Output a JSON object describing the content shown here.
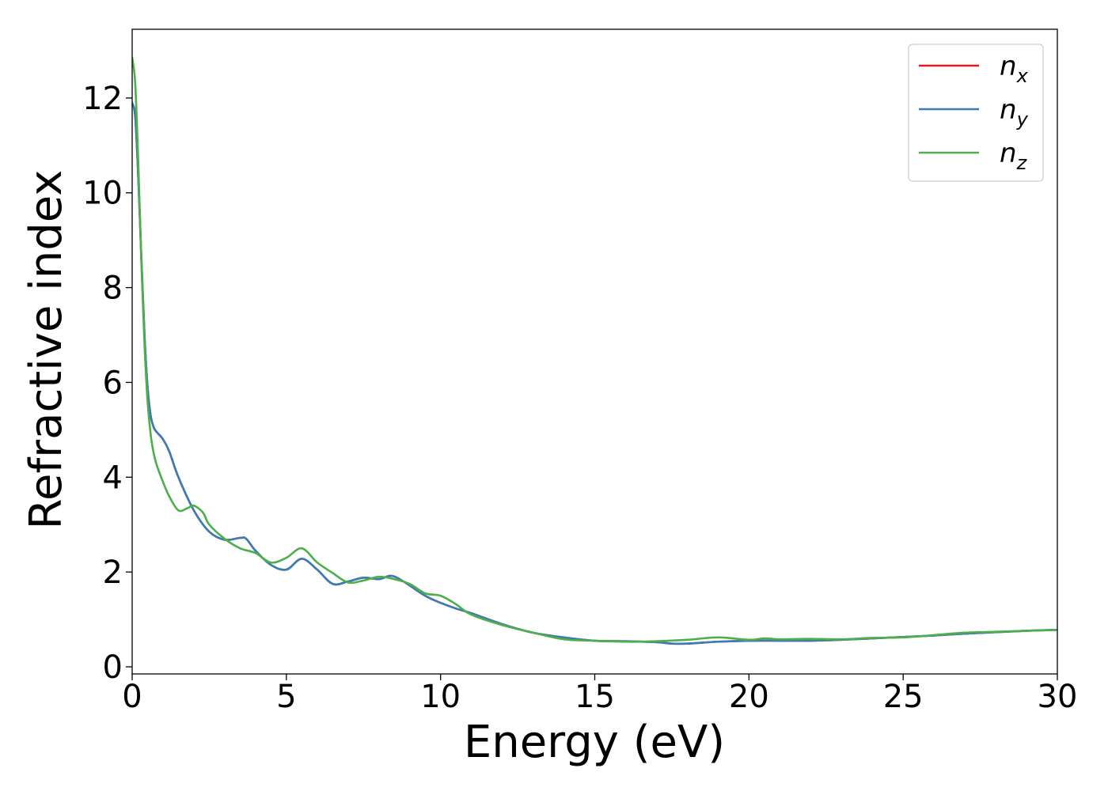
{
  "chart_data": {
    "type": "line",
    "title": "",
    "xlabel": "Energy (eV)",
    "ylabel": "Refractive index",
    "xlim": [
      0,
      30
    ],
    "ylim": [
      -0.15,
      13.45
    ],
    "xticks": [
      0,
      5,
      10,
      15,
      20,
      25,
      30
    ],
    "xtick_labels": [
      "0",
      "5",
      "10",
      "15",
      "20",
      "25",
      "30"
    ],
    "yticks": [
      0,
      2,
      4,
      6,
      8,
      10,
      12
    ],
    "ytick_labels": [
      "0",
      "2",
      "4",
      "6",
      "8",
      "10",
      "12"
    ],
    "grid": false,
    "legend_position": "top-right",
    "series": [
      {
        "name": "n",
        "subscript": "x",
        "color": "#e41a1c",
        "x": [
          0,
          0.1,
          0.2,
          0.3,
          0.4,
          0.5,
          0.6,
          0.7,
          0.8,
          1.0,
          1.2,
          1.5,
          2.0,
          2.5,
          3.0,
          3.5,
          3.7,
          4.0,
          4.5,
          5.0,
          5.5,
          6.0,
          6.5,
          7.0,
          7.5,
          8.0,
          8.4,
          8.8,
          9.5,
          10.0,
          10.5,
          11.0,
          12.0,
          13.0,
          14.0,
          15.0,
          16.0,
          17.0,
          17.5,
          18.0,
          19.0,
          20.0,
          21.0,
          22.0,
          23.0,
          24.0,
          25.0,
          26.0,
          27.0,
          28.0,
          29.0,
          30.0
        ],
        "values": [
          11.9,
          11.6,
          10.3,
          8.6,
          7.0,
          5.9,
          5.3,
          5.05,
          4.95,
          4.8,
          4.55,
          4.0,
          3.3,
          2.85,
          2.68,
          2.72,
          2.7,
          2.45,
          2.15,
          2.05,
          2.28,
          2.05,
          1.75,
          1.8,
          1.88,
          1.85,
          1.92,
          1.8,
          1.5,
          1.35,
          1.23,
          1.13,
          0.9,
          0.72,
          0.62,
          0.55,
          0.54,
          0.52,
          0.49,
          0.49,
          0.53,
          0.55,
          0.55,
          0.55,
          0.57,
          0.6,
          0.63,
          0.66,
          0.7,
          0.73,
          0.76,
          0.78
        ]
      },
      {
        "name": "n",
        "subscript": "y",
        "color": "#377eb8",
        "x": [
          0,
          0.1,
          0.2,
          0.3,
          0.4,
          0.5,
          0.6,
          0.7,
          0.8,
          1.0,
          1.2,
          1.5,
          2.0,
          2.5,
          3.0,
          3.5,
          3.7,
          4.0,
          4.5,
          5.0,
          5.5,
          6.0,
          6.5,
          7.0,
          7.5,
          8.0,
          8.4,
          8.8,
          9.5,
          10.0,
          10.5,
          11.0,
          12.0,
          13.0,
          14.0,
          15.0,
          16.0,
          17.0,
          17.5,
          18.0,
          19.0,
          20.0,
          21.0,
          22.0,
          23.0,
          24.0,
          25.0,
          26.0,
          27.0,
          28.0,
          29.0,
          30.0
        ],
        "values": [
          11.9,
          11.6,
          10.3,
          8.6,
          7.0,
          5.9,
          5.3,
          5.05,
          4.95,
          4.8,
          4.55,
          4.0,
          3.3,
          2.85,
          2.68,
          2.72,
          2.7,
          2.45,
          2.15,
          2.05,
          2.28,
          2.05,
          1.75,
          1.8,
          1.88,
          1.85,
          1.92,
          1.8,
          1.5,
          1.35,
          1.23,
          1.13,
          0.9,
          0.72,
          0.62,
          0.55,
          0.54,
          0.52,
          0.49,
          0.49,
          0.53,
          0.55,
          0.55,
          0.55,
          0.57,
          0.6,
          0.63,
          0.66,
          0.7,
          0.73,
          0.76,
          0.78
        ]
      },
      {
        "name": "n",
        "subscript": "z",
        "color": "#4daf4a",
        "x": [
          0,
          0.1,
          0.2,
          0.3,
          0.4,
          0.5,
          0.6,
          0.7,
          0.8,
          1.0,
          1.2,
          1.5,
          1.8,
          2.0,
          2.3,
          2.5,
          3.0,
          3.5,
          4.0,
          4.5,
          5.0,
          5.5,
          6.0,
          6.5,
          7.0,
          7.5,
          8.0,
          8.5,
          9.0,
          9.5,
          10.0,
          10.5,
          11.0,
          12.0,
          13.0,
          14.0,
          15.0,
          16.0,
          17.0,
          18.0,
          19.0,
          20.0,
          20.5,
          21.0,
          22.0,
          23.0,
          24.0,
          25.0,
          26.0,
          27.0,
          28.0,
          29.0,
          30.0
        ],
        "values": [
          12.85,
          12.3,
          10.6,
          8.5,
          6.8,
          5.6,
          4.9,
          4.5,
          4.25,
          3.9,
          3.6,
          3.3,
          3.35,
          3.4,
          3.25,
          3.0,
          2.7,
          2.5,
          2.4,
          2.2,
          2.3,
          2.5,
          2.2,
          1.98,
          1.78,
          1.82,
          1.9,
          1.85,
          1.75,
          1.55,
          1.5,
          1.32,
          1.1,
          0.88,
          0.72,
          0.58,
          0.55,
          0.53,
          0.54,
          0.57,
          0.62,
          0.57,
          0.6,
          0.58,
          0.59,
          0.58,
          0.61,
          0.62,
          0.67,
          0.72,
          0.74,
          0.76,
          0.78
        ]
      }
    ]
  }
}
